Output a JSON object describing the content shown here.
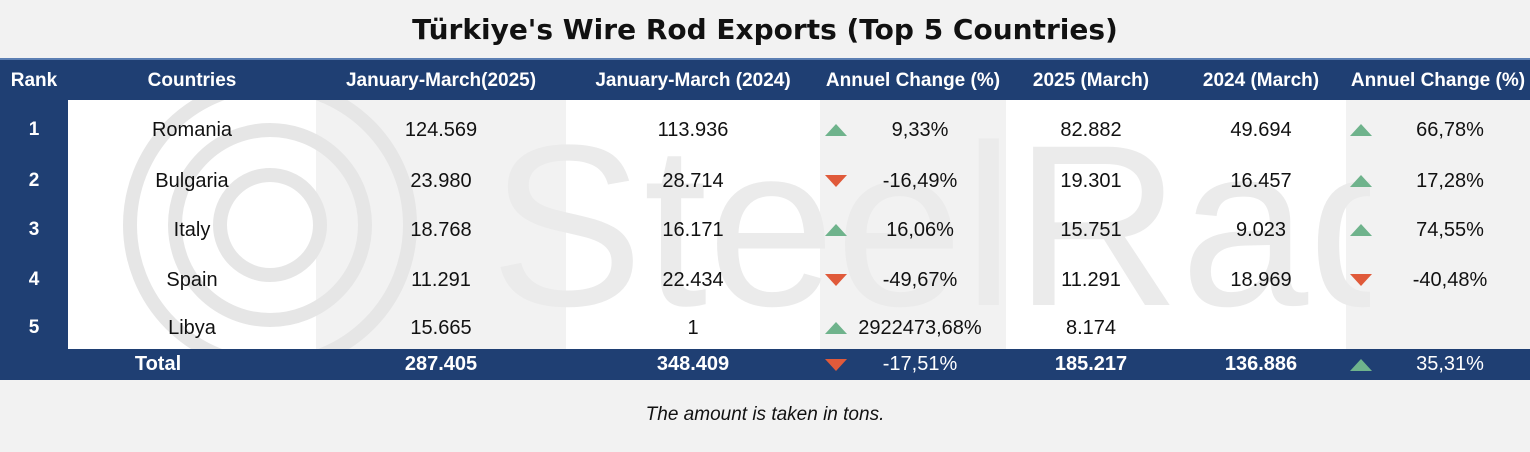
{
  "title": "Türkiye's Wire Rod Exports (Top 5 Countries)",
  "note": "The amount is taken in tons.",
  "watermark": "SteelRadar",
  "colors": {
    "header": "#1f3f73",
    "up": "#6fb38c",
    "down": "#e05a3a"
  },
  "chart_data": {
    "type": "table",
    "columns": [
      "Rank",
      "Countries",
      "January-March(2025)",
      "January-March (2024)",
      "Annuel Change (%)",
      "2025 (March)",
      "2024 (March)",
      "Annuel Change (%)"
    ],
    "rows": [
      {
        "rank": "1",
        "country": "Romania",
        "q2025": "124.569",
        "q2024": "113.936",
        "chg1": "9,33%",
        "chg1_dir": "up",
        "m2025": "82.882",
        "m2024": "49.694",
        "chg2": "66,78%",
        "chg2_dir": "up"
      },
      {
        "rank": "2",
        "country": "Bulgaria",
        "q2025": "23.980",
        "q2024": "28.714",
        "chg1": "-16,49%",
        "chg1_dir": "down",
        "m2025": "19.301",
        "m2024": "16.457",
        "chg2": "17,28%",
        "chg2_dir": "up"
      },
      {
        "rank": "3",
        "country": "Italy",
        "q2025": "18.768",
        "q2024": "16.171",
        "chg1": "16,06%",
        "chg1_dir": "up",
        "m2025": "15.751",
        "m2024": "9.023",
        "chg2": "74,55%",
        "chg2_dir": "up"
      },
      {
        "rank": "4",
        "country": "Spain",
        "q2025": "11.291",
        "q2024": "22.434",
        "chg1": "-49,67%",
        "chg1_dir": "down",
        "m2025": "11.291",
        "m2024": "18.969",
        "chg2": "-40,48%",
        "chg2_dir": "down"
      },
      {
        "rank": "5",
        "country": "Libya",
        "q2025": "15.665",
        "q2024": "1",
        "chg1": "2922473,68%",
        "chg1_dir": "up",
        "m2025": "8.174",
        "m2024": "",
        "chg2": "",
        "chg2_dir": ""
      }
    ],
    "total": {
      "label": "Total",
      "q2025": "287.405",
      "q2024": "348.409",
      "chg1": "-17,51%",
      "chg1_dir": "down",
      "m2025": "185.217",
      "m2024": "136.886",
      "chg2": "35,31%",
      "chg2_dir": "up"
    }
  }
}
